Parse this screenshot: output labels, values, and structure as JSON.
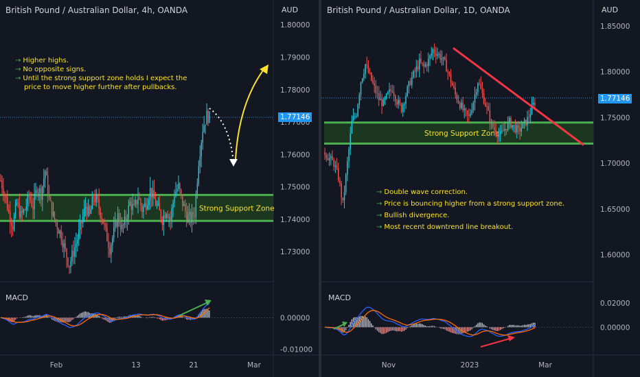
{
  "colors": {
    "background": "#131722",
    "up": "#26c6da",
    "down": "#ef5350",
    "zone_fill": "#1d3b1f",
    "zone_border": "#4caf50",
    "note_text": "#fbe12a",
    "trendline": "#f23645",
    "price_tag": "#2196f3",
    "macd_line": "#2962ff",
    "signal_line": "#ff6d00"
  },
  "left_panel": {
    "title": "British Pound / Australian Dollar, 4h, OANDA",
    "currency": "AUD",
    "last_price": "1.77146",
    "zone_label": "Strong Support Zone",
    "notes": [
      "Higher highs.",
      "No opposite signs.",
      "Until the strong support zone holds I expect the",
      "price to move higher further after pullbacks."
    ],
    "macd_label": "MACD",
    "chart_data": {
      "type": "candlestick",
      "ylim": [
        1.722,
        1.803
      ],
      "yticks": [
        "1.80000",
        "1.79000",
        "1.78000",
        "1.77000",
        "1.76000",
        "1.75000",
        "1.74000",
        "1.73000"
      ],
      "xticks": [
        "Feb",
        "13",
        "21",
        "Mar"
      ],
      "zone": [
        1.7395,
        1.7475
      ],
      "close_path": [
        1.752,
        1.748,
        1.742,
        1.738,
        1.745,
        1.741,
        1.743,
        1.747,
        1.744,
        1.75,
        1.748,
        1.755,
        1.746,
        1.741,
        1.738,
        1.735,
        1.73,
        1.726,
        1.73,
        1.734,
        1.739,
        1.744,
        1.741,
        1.747,
        1.745,
        1.741,
        1.736,
        1.731,
        1.736,
        1.741,
        1.737,
        1.74,
        1.745,
        1.743,
        1.747,
        1.743,
        1.745,
        1.749,
        1.746,
        1.743,
        1.74,
        1.743,
        1.74,
        1.748,
        1.75,
        1.745,
        1.741,
        1.74,
        1.742,
        1.758,
        1.768,
        1.772,
        1.771
      ],
      "macd_ylim": [
        -0.0105,
        0.0068
      ],
      "macd_yticks": [
        "0.00000",
        "-0.01000"
      ]
    }
  },
  "right_panel": {
    "title": "British Pound / Australian Dollar, 1D, OANDA",
    "currency": "AUD",
    "last_price": "1.77146",
    "zone_label": "Strong Support Zone",
    "notes": [
      "Double wave correction.",
      "Price is bouncing higher from a strong support zone.",
      "Bullish divergence.",
      "Most recent downtrend line breakout."
    ],
    "macd_label": "MACD",
    "chart_data": {
      "type": "candlestick",
      "ylim": [
        1.575,
        1.862
      ],
      "yticks": [
        "1.85000",
        "1.80000",
        "1.75000",
        "1.70000",
        "1.65000",
        "1.60000"
      ],
      "xticks": [
        "Nov",
        "2023",
        "Mar"
      ],
      "zone": [
        1.7215,
        1.7445
      ],
      "close_path": [
        1.712,
        1.705,
        1.7,
        1.685,
        1.655,
        1.7,
        1.745,
        1.755,
        1.79,
        1.808,
        1.795,
        1.782,
        1.77,
        1.765,
        1.775,
        1.782,
        1.768,
        1.76,
        1.775,
        1.79,
        1.8,
        1.81,
        1.805,
        1.812,
        1.824,
        1.82,
        1.815,
        1.805,
        1.79,
        1.775,
        1.765,
        1.755,
        1.75,
        1.768,
        1.79,
        1.775,
        1.76,
        1.742,
        1.735,
        1.73,
        1.738,
        1.745,
        1.74,
        1.735,
        1.741,
        1.748,
        1.76,
        1.771
      ],
      "trendline": [
        [
          1.826,
          1.72
        ]
      ],
      "macd_ylim": [
        -0.0195,
        0.0255
      ],
      "macd_yticks": [
        "0.02000",
        "0.00000"
      ]
    }
  }
}
